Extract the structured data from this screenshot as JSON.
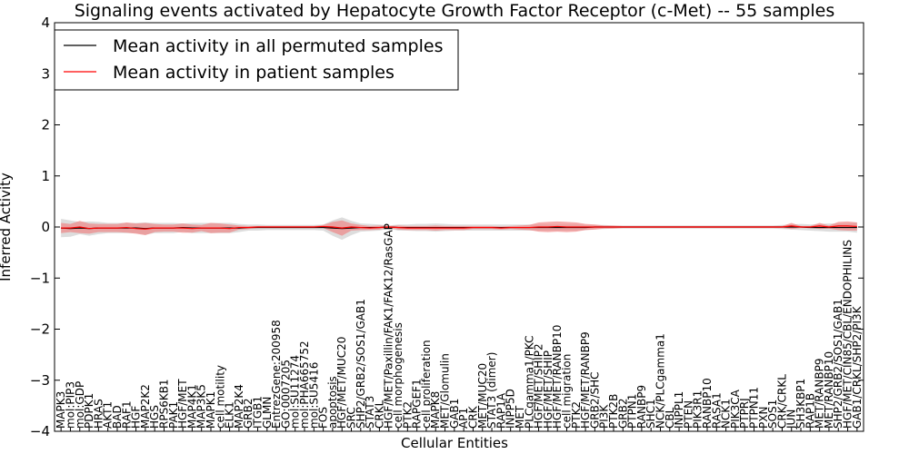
{
  "chart_data": {
    "type": "line",
    "title": "Signaling events activated by Hepatocyte Growth Factor Receptor (c-Met) -- 55 samples",
    "xlabel": "Cellular Entities",
    "ylabel": "Inferred Activity",
    "ylim": [
      -4,
      4
    ],
    "yticks": [
      4,
      3,
      2,
      1,
      0,
      -1,
      -2,
      -3,
      -4
    ],
    "ytick_labels": [
      "4",
      "3",
      "2",
      "1",
      "0",
      "−1",
      "−2",
      "−3",
      "−4"
    ],
    "legend_position": "top-left",
    "categories": [
      "MAPK3",
      "mol:PIP3",
      "mol:GDP",
      "PDPK1",
      "HRAS",
      "AKT1",
      "BAD",
      "RAF1",
      "HGF",
      "MAP2K2",
      "HGS",
      "RPS6KB1",
      "PAK1",
      "HGF/MET",
      "MAP4K1",
      "MAP3K5",
      "MAPK1",
      "cell motility",
      "ELK1",
      "MAP2K4",
      "GRB2",
      "ITGB1",
      "GLMN",
      "EntrezGene:200958",
      "GO:0007205",
      "mol:SU11274",
      "mol:PHA665752",
      "mol:SU5416",
      "FOS",
      "apoptosis",
      "HGF/MET/MUC20",
      "SRC",
      "SHP2/GRB2/SOS1/GAB1",
      "STAT3",
      "CRKL",
      "HGF/MET/Paxillin/FAK1/FAK12/RasGAP",
      "cell morphogenesis",
      "PTK2",
      "RAPGEF1",
      "cell proliferation",
      "MAPK8",
      "MET/Glomulin",
      "GAB1",
      "AP1",
      "CRK",
      "MET/MUC20",
      "STAT3 (dimer)",
      "RAP1A",
      "INPP5D",
      "MET",
      "PLCgamma1/PKC",
      "HGF/MET/SHIP2",
      "HGF/MET/SHIP",
      "HGF/MET/RANBP10",
      "cell migration",
      "PTK2",
      "HGF/MET/RANBP9",
      "GRB2/SHC",
      "PI3K",
      "PTK2B",
      "GRB2",
      "PTPN1",
      "RANBP9",
      "SHC1",
      "NCK/PLCgamma1",
      "CBL",
      "INPPL1",
      "PTEN",
      "PIK3R1",
      "RANBP10",
      "RASA1",
      "NCK1",
      "PIK3CA",
      "PTPRJ",
      "PTPN11",
      "PXN",
      "SOS1",
      "CRK/CRKL",
      "JUN",
      "SH3KBP1",
      "RAP1B",
      "MET/RANBP9",
      "MET/RANBP10",
      "SHP2/GRB2/SOS1/GAB1",
      "HGF/MET/CIN85/CBL/ENDOPHILINS",
      "GAB1/CRKL/SHP2/PI3K"
    ],
    "series": [
      {
        "name": "Mean activity in all permuted samples",
        "color": "#000000",
        "band_color": "#bbbbbb",
        "values": [
          -0.02,
          -0.03,
          -0.02,
          -0.03,
          -0.02,
          -0.02,
          -0.02,
          -0.02,
          -0.02,
          -0.03,
          -0.02,
          -0.02,
          -0.02,
          -0.01,
          -0.02,
          -0.02,
          -0.02,
          -0.02,
          -0.02,
          -0.02,
          -0.01,
          -0.01,
          -0.01,
          -0.01,
          -0.01,
          -0.01,
          -0.01,
          -0.01,
          -0.01,
          -0.02,
          -0.03,
          -0.02,
          -0.01,
          -0.01,
          -0.01,
          0.0,
          -0.01,
          -0.01,
          -0.01,
          -0.01,
          -0.01,
          -0.01,
          -0.01,
          -0.01,
          -0.01,
          -0.01,
          -0.01,
          -0.01,
          -0.01,
          -0.01,
          -0.01,
          -0.01,
          -0.01,
          -0.01,
          -0.01,
          -0.01,
          -0.01,
          0.0,
          0.0,
          0.0,
          0.0,
          0.0,
          0.0,
          0.0,
          0.0,
          0.0,
          0.0,
          0.0,
          0.0,
          0.0,
          0.0,
          0.0,
          0.0,
          0.0,
          0.0,
          0.0,
          0.0,
          0.0,
          0.0,
          0.0,
          -0.01,
          -0.01,
          -0.01,
          -0.01,
          -0.01,
          -0.01
        ],
        "band": [
          0.18,
          0.16,
          0.12,
          0.14,
          0.12,
          0.1,
          0.1,
          0.1,
          0.1,
          0.12,
          0.1,
          0.1,
          0.1,
          0.08,
          0.1,
          0.1,
          0.1,
          0.1,
          0.1,
          0.08,
          0.06,
          0.06,
          0.05,
          0.05,
          0.05,
          0.05,
          0.05,
          0.05,
          0.06,
          0.15,
          0.22,
          0.14,
          0.08,
          0.07,
          0.06,
          0.03,
          0.06,
          0.06,
          0.07,
          0.07,
          0.08,
          0.07,
          0.06,
          0.06,
          0.06,
          0.06,
          0.06,
          0.06,
          0.06,
          0.06,
          0.06,
          0.06,
          0.06,
          0.06,
          0.06,
          0.06,
          0.05,
          0.04,
          0.04,
          0.03,
          0.03,
          0.03,
          0.03,
          0.03,
          0.03,
          0.03,
          0.03,
          0.03,
          0.03,
          0.03,
          0.03,
          0.03,
          0.03,
          0.03,
          0.03,
          0.03,
          0.03,
          0.04,
          0.05,
          0.06,
          0.06,
          0.07,
          0.08,
          0.08,
          0.08,
          0.1
        ]
      },
      {
        "name": "Mean activity in patient samples",
        "color": "#ff0000",
        "band_color": "#f08080",
        "values": [
          -0.02,
          -0.02,
          0.0,
          -0.03,
          -0.02,
          -0.02,
          -0.02,
          -0.01,
          -0.03,
          -0.04,
          -0.02,
          -0.02,
          -0.02,
          -0.02,
          -0.03,
          -0.02,
          -0.02,
          -0.02,
          -0.03,
          -0.01,
          -0.01,
          0.0,
          0.0,
          0.0,
          0.0,
          0.0,
          0.0,
          0.0,
          0.01,
          0.0,
          -0.02,
          0.0,
          -0.01,
          -0.02,
          -0.01,
          0.0,
          -0.01,
          -0.02,
          -0.02,
          -0.02,
          -0.02,
          -0.02,
          -0.02,
          -0.02,
          -0.01,
          -0.01,
          -0.01,
          -0.02,
          -0.01,
          -0.01,
          -0.01,
          0.0,
          0.0,
          0.01,
          0.0,
          0.0,
          0.0,
          0.0,
          0.0,
          0.0,
          0.0,
          0.0,
          0.0,
          0.0,
          0.0,
          0.0,
          0.0,
          0.0,
          0.0,
          0.0,
          0.0,
          0.0,
          0.0,
          0.0,
          0.0,
          0.0,
          0.0,
          0.0,
          0.02,
          0.0,
          0.0,
          0.02,
          0.0,
          0.02,
          0.02,
          0.01
        ],
        "band": [
          0.1,
          0.08,
          0.12,
          0.1,
          0.08,
          0.08,
          0.08,
          0.1,
          0.1,
          0.12,
          0.08,
          0.07,
          0.07,
          0.09,
          0.08,
          0.06,
          0.1,
          0.09,
          0.08,
          0.04,
          0.03,
          0.02,
          0.02,
          0.02,
          0.02,
          0.02,
          0.02,
          0.02,
          0.03,
          0.1,
          0.15,
          0.07,
          0.05,
          0.04,
          0.04,
          0.02,
          0.04,
          0.04,
          0.04,
          0.04,
          0.05,
          0.04,
          0.04,
          0.04,
          0.03,
          0.03,
          0.03,
          0.03,
          0.03,
          0.04,
          0.05,
          0.09,
          0.1,
          0.1,
          0.1,
          0.09,
          0.06,
          0.05,
          0.03,
          0.03,
          0.02,
          0.02,
          0.02,
          0.02,
          0.02,
          0.02,
          0.02,
          0.02,
          0.02,
          0.02,
          0.02,
          0.02,
          0.02,
          0.02,
          0.02,
          0.02,
          0.02,
          0.02,
          0.06,
          0.02,
          0.02,
          0.06,
          0.03,
          0.08,
          0.09,
          0.08
        ]
      }
    ]
  }
}
